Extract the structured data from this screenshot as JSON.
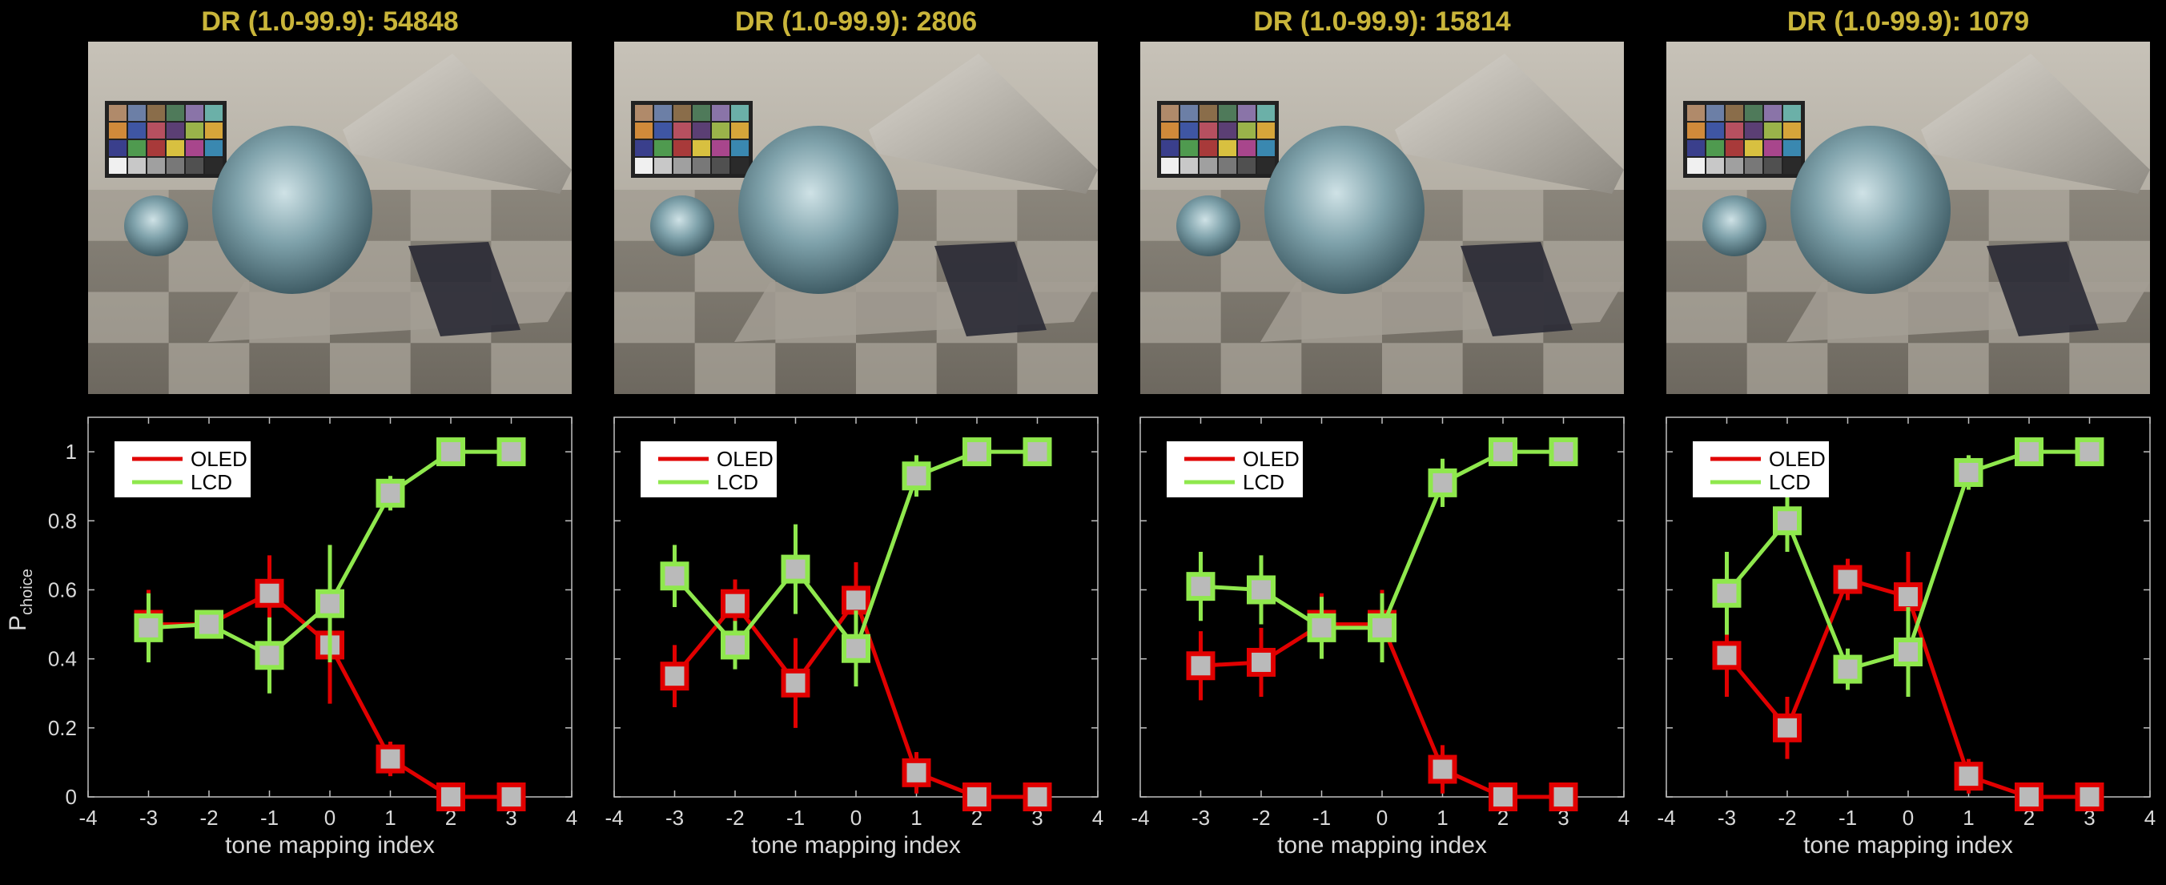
{
  "chart_data": [
    {
      "type": "line",
      "title": "DR (1.0-99.9): 54848",
      "xlabel": "tone mapping index",
      "ylabel": "P",
      "ylabel_sub": "choice",
      "xlim": [
        -4,
        4
      ],
      "ylim": [
        0,
        1.1
      ],
      "xticks": [
        -4,
        -3,
        -2,
        -1,
        0,
        1,
        2,
        3,
        4
      ],
      "yticks": [
        0,
        0.2,
        0.4,
        0.6,
        0.8,
        1
      ],
      "ytick_labels": [
        "0",
        "0.2",
        "0.4",
        "0.6",
        "0.8",
        "1"
      ],
      "legend_position": "top-left",
      "x": [
        -3,
        -2,
        -1,
        0,
        1,
        2,
        3
      ],
      "series": [
        {
          "name": "OLED",
          "color": "#e10000",
          "values": [
            0.5,
            0.5,
            0.59,
            0.44,
            0.11,
            0.0,
            0.0
          ],
          "err": [
            0.1,
            0.03,
            0.11,
            0.17,
            0.05,
            0.0,
            0.0
          ]
        },
        {
          "name": "LCD",
          "color": "#8fe84d",
          "values": [
            0.49,
            0.5,
            0.41,
            0.56,
            0.88,
            1.0,
            1.0
          ],
          "err": [
            0.1,
            0.03,
            0.11,
            0.17,
            0.05,
            0.0,
            0.0
          ]
        }
      ]
    },
    {
      "type": "line",
      "title": "DR (1.0-99.9): 2806",
      "xlabel": "tone mapping index",
      "ylabel": "",
      "xlim": [
        -4,
        4
      ],
      "ylim": [
        0,
        1.1
      ],
      "xticks": [
        -4,
        -3,
        -2,
        -1,
        0,
        1,
        2,
        3,
        4
      ],
      "yticks": [],
      "legend_position": "top-left",
      "x": [
        -3,
        -2,
        -1,
        0,
        1,
        2,
        3
      ],
      "series": [
        {
          "name": "OLED",
          "color": "#e10000",
          "values": [
            0.35,
            0.56,
            0.33,
            0.57,
            0.07,
            0.0,
            0.0
          ],
          "err": [
            0.09,
            0.07,
            0.13,
            0.11,
            0.06,
            0.0,
            0.0
          ]
        },
        {
          "name": "LCD",
          "color": "#8fe84d",
          "values": [
            0.64,
            0.44,
            0.66,
            0.43,
            0.93,
            1.0,
            1.0
          ],
          "err": [
            0.09,
            0.07,
            0.13,
            0.11,
            0.06,
            0.0,
            0.0
          ]
        }
      ]
    },
    {
      "type": "line",
      "title": "DR (1.0-99.9): 15814",
      "xlabel": "tone mapping index",
      "ylabel": "",
      "xlim": [
        -4,
        4
      ],
      "ylim": [
        0,
        1.1
      ],
      "xticks": [
        -4,
        -3,
        -2,
        -1,
        0,
        1,
        2,
        3,
        4
      ],
      "yticks": [],
      "legend_position": "top-left",
      "x": [
        -3,
        -2,
        -1,
        0,
        1,
        2,
        3
      ],
      "series": [
        {
          "name": "OLED",
          "color": "#e10000",
          "values": [
            0.38,
            0.39,
            0.5,
            0.5,
            0.08,
            0.0,
            0.0
          ],
          "err": [
            0.1,
            0.1,
            0.09,
            0.1,
            0.07,
            0.0,
            0.0
          ]
        },
        {
          "name": "LCD",
          "color": "#8fe84d",
          "values": [
            0.61,
            0.6,
            0.49,
            0.49,
            0.91,
            1.0,
            1.0
          ],
          "err": [
            0.1,
            0.1,
            0.09,
            0.1,
            0.07,
            0.0,
            0.0
          ]
        }
      ]
    },
    {
      "type": "line",
      "title": "DR (1.0-99.9): 1079",
      "xlabel": "tone mapping index",
      "ylabel": "",
      "xlim": [
        -4,
        4
      ],
      "ylim": [
        0,
        1.1
      ],
      "xticks": [
        -4,
        -3,
        -2,
        -1,
        0,
        1,
        2,
        3,
        4
      ],
      "yticks": [],
      "legend_position": "top-left",
      "x": [
        -3,
        -2,
        -1,
        0,
        1,
        2,
        3
      ],
      "series": [
        {
          "name": "OLED",
          "color": "#e10000",
          "values": [
            0.41,
            0.2,
            0.63,
            0.58,
            0.06,
            0.0,
            0.0
          ],
          "err": [
            0.12,
            0.09,
            0.06,
            0.13,
            0.05,
            0.0,
            0.0
          ]
        },
        {
          "name": "LCD",
          "color": "#8fe84d",
          "values": [
            0.59,
            0.8,
            0.37,
            0.42,
            0.94,
            1.0,
            1.0
          ],
          "err": [
            0.12,
            0.09,
            0.06,
            0.13,
            0.05,
            0.0,
            0.0
          ]
        }
      ]
    }
  ]
}
